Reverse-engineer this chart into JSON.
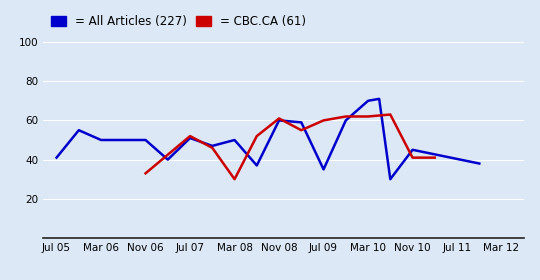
{
  "x_labels": [
    "Jul 05",
    "Mar 06",
    "Nov 06",
    "Jul 07",
    "Mar 08",
    "Nov 08",
    "Jul 09",
    "Mar 10",
    "Nov 10",
    "Jul 11",
    "Mar 12"
  ],
  "all_articles_label": "= All Articles (227)",
  "cbc_label": "= CBC.CA (61)",
  "all_articles_color": "#0000cc",
  "cbc_color": "#cc0000",
  "all_x": [
    0,
    0.5,
    1.0,
    2.0,
    2.5,
    3.0,
    3.5,
    4.0,
    4.5,
    5.0,
    5.5,
    6.0,
    6.5,
    7.0,
    7.25,
    7.5,
    8.0,
    9.5
  ],
  "all_y": [
    41,
    55,
    50,
    50,
    40,
    51,
    47,
    50,
    37,
    60,
    59,
    35,
    60,
    70,
    71,
    30,
    45,
    38
  ],
  "cbc_x": [
    2.0,
    3.0,
    3.5,
    4.0,
    4.5,
    5.0,
    5.5,
    6.0,
    6.5,
    7.0,
    7.5,
    8.0,
    8.5
  ],
  "cbc_y": [
    33,
    52,
    46,
    30,
    52,
    61,
    55,
    60,
    62,
    62,
    63,
    41,
    41
  ],
  "ylim": [
    0,
    100
  ],
  "yticks": [
    20,
    40,
    60,
    80,
    100
  ],
  "xlim": [
    -0.3,
    10.5
  ],
  "background_color": "#dce8f5",
  "grid_color": "#ffffff",
  "line_width": 1.8,
  "legend_fontsize": 8.5,
  "tick_fontsize": 7.5
}
